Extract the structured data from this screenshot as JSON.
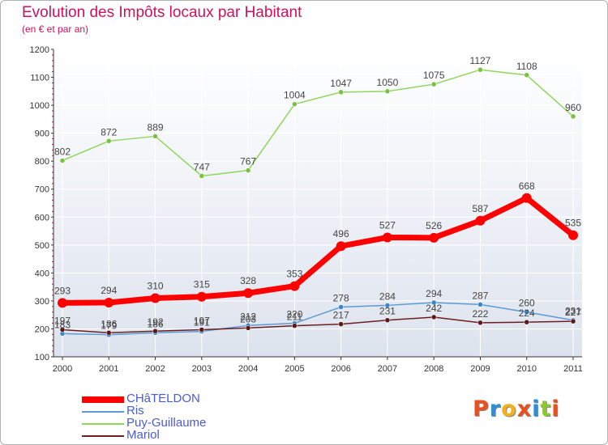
{
  "title": "Evolution des Impôts locaux par Habitant",
  "subtitle": "(en € et par an)",
  "logo": {
    "text": "Proxiti",
    "colors": [
      "#e8501d",
      "#2f8fd6",
      "#f2b01e",
      "#e8501d",
      "#2f8fd6",
      "#8bc82b",
      "#e8501d"
    ]
  },
  "chart_data": {
    "type": "line",
    "title": "Evolution des Impôts locaux par Habitant",
    "subtitle": "(en € et par an)",
    "xlabel": "",
    "ylabel": "",
    "x": [
      "2000",
      "2001",
      "2002",
      "2003",
      "2004",
      "2005",
      "2006",
      "2007",
      "2008",
      "2009",
      "2010",
      "2011"
    ],
    "ylim": [
      100,
      1200
    ],
    "yticks": [
      100,
      200,
      300,
      400,
      500,
      600,
      700,
      800,
      900,
      1000,
      1100,
      1200
    ],
    "grid": true,
    "legend": "bottom-left",
    "series": [
      {
        "name": "CHâTELDON",
        "color": "#ff0000",
        "values": [
          293,
          294,
          310,
          315,
          328,
          353,
          496,
          527,
          526,
          587,
          668,
          535
        ]
      },
      {
        "name": "Ris",
        "color": "#5b9bd5",
        "values": [
          183,
          179,
          186,
          191,
          212,
          220,
          278,
          284,
          294,
          287,
          260,
          231
        ]
      },
      {
        "name": "Puy-Guillaume",
        "color": "#8fd65b",
        "values": [
          802,
          872,
          889,
          747,
          767,
          1004,
          1047,
          1050,
          1075,
          1127,
          1108,
          960
        ]
      },
      {
        "name": "Mariol",
        "color": "#6b1f1f",
        "values": [
          197,
          186,
          192,
          197,
          203,
          211,
          217,
          231,
          242,
          222,
          224,
          227
        ]
      }
    ]
  }
}
